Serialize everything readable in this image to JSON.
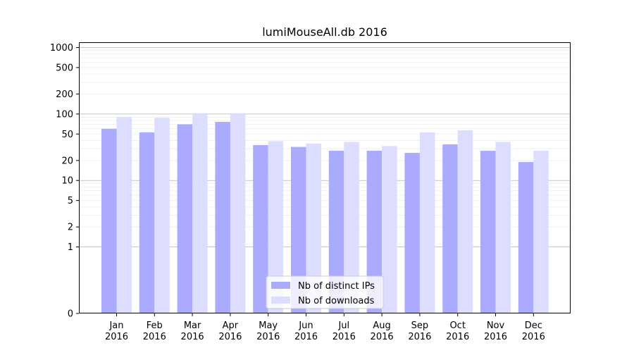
{
  "chart_data": {
    "type": "bar",
    "title": "lumiMouseAll.db 2016",
    "xlabel": "",
    "ylabel": "",
    "y_scale": "symlog",
    "y_ticks": [
      0,
      1,
      2,
      5,
      10,
      20,
      50,
      100,
      200,
      500,
      1000
    ],
    "y_tick_labels": [
      "0",
      "1",
      "2",
      "5",
      "10",
      "20",
      "50",
      "100",
      "200",
      "500",
      "1000"
    ],
    "ylim": [
      0,
      1200
    ],
    "grid": true,
    "legend_position": "bottom-center",
    "categories": [
      "Jan\n2016",
      "Feb\n2016",
      "Mar\n2016",
      "Apr\n2016",
      "May\n2016",
      "Jun\n2016",
      "Jul\n2016",
      "Aug\n2016",
      "Sep\n2016",
      "Oct\n2016",
      "Nov\n2016",
      "Dec\n2016"
    ],
    "series": [
      {
        "name": "Nb of distinct IPs",
        "color": "#aaaaff",
        "values": [
          60,
          53,
          70,
          76,
          34,
          32,
          28,
          28,
          26,
          35,
          28,
          19
        ]
      },
      {
        "name": "Nb of downloads",
        "color": "#ddddff",
        "values": [
          90,
          88,
          103,
          103,
          39,
          36,
          38,
          33,
          53,
          57,
          38,
          28
        ]
      }
    ]
  }
}
